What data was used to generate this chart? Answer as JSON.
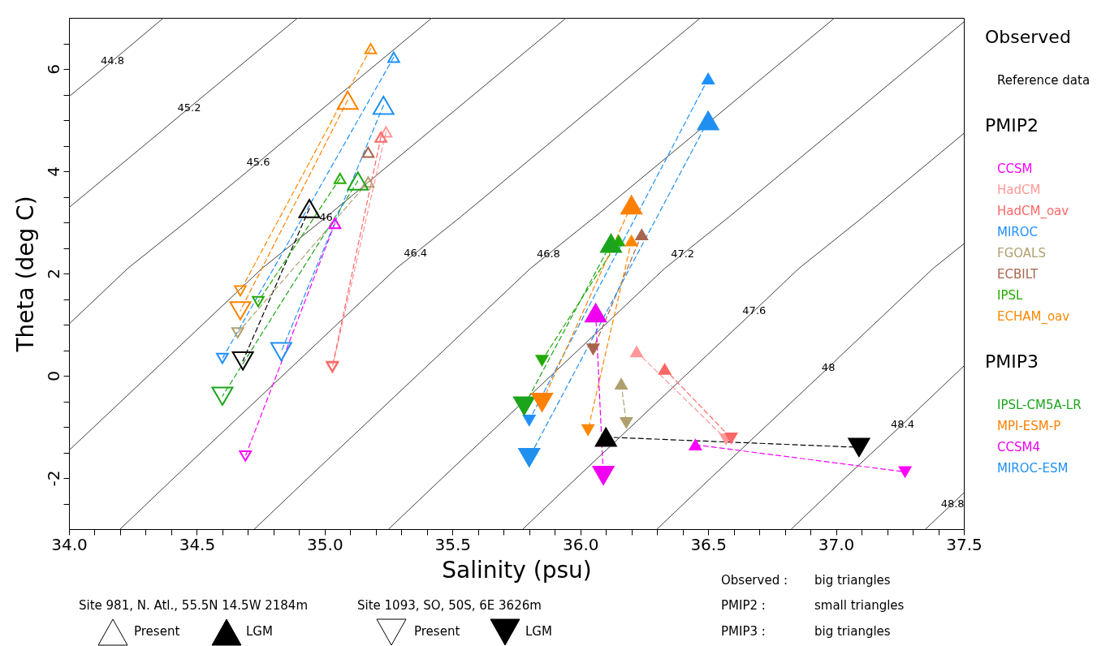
{
  "chart_data": {
    "type": "line",
    "xlabel": "Salinity  (psu)",
    "ylabel": "Theta (deg C)",
    "xlim": [
      34,
      37.5
    ],
    "ylim": [
      -3,
      7
    ],
    "xticks": [
      {
        "value": 34,
        "label": "34.0"
      },
      {
        "value": 34.1,
        "label": null
      },
      {
        "value": 34.2,
        "label": null
      },
      {
        "value": 34.3,
        "label": null
      },
      {
        "value": 34.4,
        "label": null
      },
      34.5,
      {
        "value": 34.6,
        "label": null
      },
      {
        "value": 34.7,
        "label": null
      },
      {
        "value": 34.8,
        "label": null
      },
      {
        "value": 34.9,
        "label": null
      },
      {
        "value": 35,
        "label": "35.0"
      },
      {
        "value": 35.1,
        "label": null
      },
      {
        "value": 35.2,
        "label": null
      },
      {
        "value": 35.3,
        "label": null
      },
      {
        "value": 35.4,
        "label": null
      },
      35.5,
      {
        "value": 35.6,
        "label": null
      },
      {
        "value": 35.7,
        "label": null
      },
      {
        "value": 35.8,
        "label": null
      },
      {
        "value": 35.9,
        "label": null
      },
      {
        "value": 36,
        "label": "36.0"
      },
      {
        "value": 36.1,
        "label": null
      },
      {
        "value": 36.2,
        "label": null
      },
      {
        "value": 36.3,
        "label": null
      },
      {
        "value": 36.4,
        "label": null
      },
      36.5,
      {
        "value": 36.6,
        "label": null
      },
      {
        "value": 36.7,
        "label": null
      },
      {
        "value": 36.8,
        "label": null
      },
      {
        "value": 36.9,
        "label": null
      },
      {
        "value": 37,
        "label": "37.0"
      },
      {
        "value": 37.1,
        "label": null
      },
      {
        "value": 37.2,
        "label": null
      },
      {
        "value": 37.3,
        "label": null
      },
      {
        "value": 37.4,
        "label": null
      },
      37.5
    ],
    "yticks": [
      {
        "value": -2.5,
        "label": null
      },
      -2,
      {
        "value": -1.5,
        "label": null
      },
      {
        "value": -1,
        "label": null
      },
      {
        "value": -0.5,
        "label": null
      },
      0,
      {
        "value": 0.5,
        "label": null
      },
      {
        "value": 1,
        "label": null
      },
      {
        "value": 1.5,
        "label": null
      },
      2,
      {
        "value": 2.5,
        "label": null
      },
      {
        "value": 3,
        "label": null
      },
      {
        "value": 3.5,
        "label": null
      },
      4,
      {
        "value": 4.5,
        "label": null
      },
      {
        "value": 5,
        "label": null
      },
      {
        "value": 5.5,
        "label": null
      },
      6,
      {
        "value": 6.5,
        "label": null
      }
    ],
    "legend": "right",
    "series": [
      {
        "color": "#404040",
        "line_style": "solid",
        "x": [
          34.0,
          34.17,
          34.37
        ],
        "values": [
          5.46,
          6.16,
          7
        ]
      },
      {
        "color": "#404040",
        "line_style": "solid",
        "x": [
          34.0,
          34.365,
          34.47,
          34.895
        ],
        "values": [
          3.29,
          4.8,
          5.24,
          7
        ]
      },
      {
        "color": "#404040",
        "line_style": "solid",
        "x": [
          34.0,
          34.23,
          34.48,
          34.74,
          34.89,
          35.42
        ],
        "values": [
          1.01,
          2.1,
          3.1,
          4.17,
          4.8,
          7
        ]
      },
      {
        "color": "#404040",
        "line_style": "solid",
        "x": [
          34.0,
          34.395,
          34.755,
          35.005,
          35.415,
          35.945
        ],
        "values": [
          -1.46,
          0.4,
          2.1,
          3.1,
          4.8,
          7
        ]
      },
      {
        "color": "#404040",
        "line_style": "solid",
        "x": [
          34.2,
          34.41,
          34.92,
          35.28,
          35.355,
          35.53,
          35.94,
          36.47
        ],
        "values": [
          -3,
          -2,
          0.4,
          2.1,
          2.4,
          3.1,
          4.8,
          7
        ]
      },
      {
        "color": "#404040",
        "line_style": "solid",
        "x": [
          34.725,
          34.935,
          35.445,
          35.805,
          35.875,
          36.055,
          36.465,
          36.995
        ],
        "values": [
          -3,
          -2,
          0.4,
          2.1,
          2.38,
          3.1,
          4.8,
          7
        ]
      },
      {
        "color": "#404040",
        "line_style": "solid",
        "x": [
          35.25,
          35.46,
          35.97,
          36.33,
          36.4,
          36.58,
          36.99,
          37.5
        ],
        "values": [
          -3,
          -2,
          0.4,
          2.1,
          2.38,
          3.1,
          4.8,
          6.92
        ]
      },
      {
        "color": "#404040",
        "line_style": "solid",
        "x": [
          35.775,
          35.985,
          36.495,
          36.68,
          36.855,
          37.105,
          37.5
        ],
        "values": [
          -3,
          -2,
          0.4,
          1.27,
          2.1,
          3.1,
          4.74
        ]
      },
      {
        "color": "#404040",
        "line_style": "solid",
        "x": [
          36.3,
          36.51,
          36.97,
          37.02,
          37.38,
          37.5
        ],
        "values": [
          -3,
          -2,
          0.16,
          0.4,
          2.1,
          2.58
        ]
      },
      {
        "color": "#404040",
        "line_style": "solid",
        "x": [
          36.825,
          37.035,
          37.26,
          37.5
        ],
        "values": [
          -3,
          -2,
          -0.95,
          0.19
        ]
      },
      {
        "color": "#404040",
        "line_style": "solid",
        "x": [
          37.35,
          37.456,
          37.5
        ],
        "values": [
          -3,
          -2.5,
          -2.29
        ]
      },
      {
        "name": "Reference data",
        "color": "#000000",
        "line_style": "dashed",
        "marker": "triangle-open",
        "x": [
          34.94,
          34.68
        ],
        "values": [
          3.27,
          0.29
        ]
      },
      {
        "color": "#000000",
        "line_style": "dashed",
        "marker": "triangle",
        "x": [
          36.1,
          37.09
        ],
        "values": [
          -1.2,
          -1.4
        ]
      },
      {
        "name": "CCSM",
        "color": "#ff00ff",
        "line_style": "dashed",
        "marker": "triangle-small-open",
        "x": [
          35.04,
          34.69
        ],
        "values": [
          2.98,
          -1.57
        ]
      },
      {
        "color": "#ff00ff",
        "line_style": "dashed",
        "marker": "triangle-small",
        "x": [
          36.45,
          37.27
        ],
        "values": [
          -1.35,
          -1.88
        ]
      },
      {
        "name": "HadCM",
        "color": "#ff9999",
        "line_style": "dashed",
        "marker": "triangle-small-open",
        "x": [
          35.24,
          35.03
        ],
        "values": [
          4.77,
          0.16
        ]
      },
      {
        "color": "#ff9999",
        "line_style": "dashed",
        "marker": "triangle-small",
        "x": [
          36.22,
          36.57
        ],
        "values": [
          0.47,
          -1.24
        ]
      },
      {
        "name": "HadCM_oav",
        "color": "#ff6666",
        "line_style": "dashed",
        "marker": "triangle-small-open",
        "x": [
          35.22,
          35.03
        ],
        "values": [
          4.67,
          0.18
        ]
      },
      {
        "color": "#ff6666",
        "line_style": "dashed",
        "marker": "triangle-small",
        "x": [
          36.33,
          36.59
        ],
        "values": [
          0.13,
          -1.22
        ]
      },
      {
        "name": "MIROC",
        "color": "#1e90ff",
        "line_style": "dashed",
        "marker": "triangle-small-open",
        "x": [
          35.27,
          34.6
        ],
        "values": [
          6.23,
          0.34
        ]
      },
      {
        "color": "#1e90ff",
        "line_style": "dashed",
        "marker": "triangle-small",
        "x": [
          36.5,
          35.8
        ],
        "values": [
          5.81,
          -0.87
        ]
      },
      {
        "name": "FGOALS",
        "color": "#b0a070",
        "line_style": "dashed",
        "marker": "triangle-small-open",
        "x": [
          35.17,
          34.66
        ],
        "values": [
          3.79,
          0.84
        ]
      },
      {
        "color": "#b0a070",
        "line_style": "dashed",
        "marker": "triangle-small",
        "x": [
          36.16,
          36.18
        ],
        "values": [
          -0.16,
          -0.92
        ]
      },
      {
        "name": "ECBILT",
        "color": "#a8644c",
        "line_style": "dashed",
        "marker": "triangle-small-open",
        "x": [
          35.17,
          null
        ],
        "values": [
          4.37,
          null
        ]
      },
      {
        "color": "#a8644c",
        "line_style": "dashed",
        "marker": "triangle-small",
        "x": [
          36.24,
          36.05
        ],
        "values": [
          2.76,
          0.52
        ]
      },
      {
        "name": "IPSL",
        "color": "#22aa00",
        "line_style": "dashed",
        "marker": "triangle-small-open",
        "x": [
          35.06,
          34.74
        ],
        "values": [
          3.86,
          1.45
        ]
      },
      {
        "color": "#22aa00",
        "line_style": "dashed",
        "marker": "triangle-small",
        "x": [
          36.15,
          35.85
        ],
        "values": [
          2.64,
          0.3
        ]
      },
      {
        "name": "ECHAM_oav",
        "color": "#ff8800",
        "line_style": "dashed",
        "marker": "triangle-small-open",
        "x": [
          35.18,
          34.67
        ],
        "values": [
          6.4,
          1.66
        ]
      },
      {
        "color": "#ff8800",
        "line_style": "dashed",
        "marker": "triangle-small",
        "x": [
          36.2,
          36.03
        ],
        "values": [
          2.64,
          -1.06
        ]
      },
      {
        "name": "IPSL-CM5A-LR",
        "color": "#1ca51c",
        "line_style": "dashed",
        "marker": "triangle-open",
        "x": [
          35.13,
          34.6
        ],
        "values": [
          3.81,
          -0.4
        ]
      },
      {
        "color": "#1ca51c",
        "line_style": "dashed",
        "marker": "triangle",
        "x": [
          36.12,
          35.78
        ],
        "values": [
          2.59,
          -0.59
        ]
      },
      {
        "name": "MPI-ESM-P",
        "color": "#ff8000",
        "line_style": "dashed",
        "marker": "triangle-open",
        "x": [
          35.09,
          34.67
        ],
        "values": [
          5.39,
          1.27
        ]
      },
      {
        "color": "#ff8000",
        "line_style": "dashed",
        "marker": "triangle",
        "x": [
          36.2,
          35.85
        ],
        "values": [
          3.34,
          -0.52
        ]
      },
      {
        "name": "CCSM4",
        "color": "#f000f0",
        "line_style": "dashed",
        "marker": "triangle",
        "x": [
          36.06,
          36.09
        ],
        "values": [
          1.23,
          -1.95
        ]
      },
      {
        "name": "MIROC-ESM",
        "color": "#2090f0",
        "line_style": "dashed",
        "marker": "triangle-open",
        "x": [
          35.23,
          34.83
        ],
        "values": [
          5.29,
          0.47
        ]
      },
      {
        "color": "#2090f0",
        "line_style": "dashed",
        "marker": "triangle",
        "x": [
          36.5,
          35.8
        ],
        "values": [
          4.99,
          -1.6
        ]
      }
    ],
    "annotations": [
      "Observed",
      "PMIP2",
      "PMIP3",
      "Site 981, N. Atl., 55.5N 14.5W 2184m",
      "Present",
      "LGM",
      "Site 1093, SO, 50S, 6E 3626m",
      "Present",
      "LGM",
      "Observed :",
      "big triangles",
      "PMIP2 :",
      "small triangles",
      "PMIP3 :",
      "big triangles",
      {
        "text": "44.8",
        "x": 34.17,
        "y": 6.16
      },
      {
        "text": "45.2",
        "x": 34.47,
        "y": 5.24
      },
      {
        "text": "45.6",
        "x": 34.74,
        "y": 4.17
      },
      {
        "text": "46",
        "x": 35.005,
        "y": 3.1
      },
      {
        "text": "46.4",
        "x": 35.355,
        "y": 2.4
      },
      {
        "text": "46.8",
        "x": 35.875,
        "y": 2.38
      },
      {
        "text": "47.2",
        "x": 36.4,
        "y": 2.38
      },
      {
        "text": "47.6",
        "x": 36.68,
        "y": 1.27
      },
      {
        "text": "48",
        "x": 36.97,
        "y": 0.16
      },
      {
        "text": "48.4",
        "x": 37.26,
        "y": -0.95
      },
      {
        "text": "48.8",
        "x": 37.456,
        "y": -2.5
      }
    ]
  }
}
